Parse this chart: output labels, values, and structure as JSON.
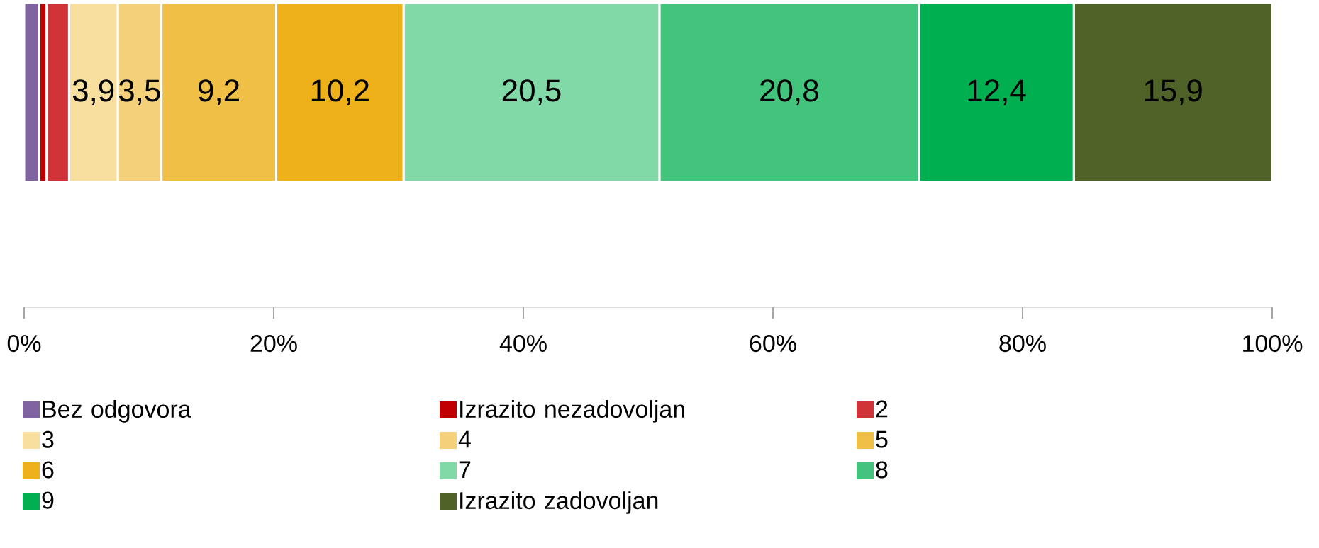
{
  "chart_data": {
    "type": "bar",
    "orientation": "horizontal",
    "stacked": true,
    "categories": [
      null
    ],
    "series": [
      {
        "name": "Bez odgovora",
        "color": "#8064a2",
        "values": [
          1.2
        ]
      },
      {
        "name": "Izrazito nezadovoljan",
        "color": "#c00000",
        "values": [
          0.6
        ]
      },
      {
        "name": "2",
        "color": "#d13438",
        "values": [
          1.8
        ]
      },
      {
        "name": "3",
        "color": "#f8dfa0",
        "values": [
          3.9
        ],
        "value_labels": [
          "3,9"
        ]
      },
      {
        "name": "4",
        "color": "#f5d07a",
        "values": [
          3.5
        ],
        "value_labels": [
          "3,5"
        ]
      },
      {
        "name": "5",
        "color": "#f0c046",
        "values": [
          9.2
        ],
        "value_labels": [
          "9,2"
        ]
      },
      {
        "name": "6",
        "color": "#eeb11a",
        "values": [
          10.2
        ],
        "value_labels": [
          "10,2"
        ]
      },
      {
        "name": "7",
        "color": "#82d9a8",
        "values": [
          20.5
        ],
        "value_labels": [
          "20,5"
        ]
      },
      {
        "name": "8",
        "color": "#43c47c",
        "values": [
          20.8
        ],
        "value_labels": [
          "20,8"
        ]
      },
      {
        "name": "9",
        "color": "#00b050",
        "values": [
          12.4
        ],
        "value_labels": [
          "12,4"
        ]
      },
      {
        "name": "Izrazito zadovoljan",
        "color": "#4f6228",
        "values": [
          15.9
        ],
        "value_labels": [
          "15,9"
        ]
      }
    ],
    "xlim": [
      0,
      100
    ],
    "xticks": [
      {
        "value": 0,
        "label": "0%"
      },
      {
        "value": 20,
        "label": "20%"
      },
      {
        "value": 40,
        "label": "40%"
      },
      {
        "value": 60,
        "label": "60%"
      },
      {
        "value": 80,
        "label": "80%"
      },
      {
        "value": 100,
        "label": "100%"
      }
    ],
    "grid": false,
    "legend": "bottom"
  }
}
